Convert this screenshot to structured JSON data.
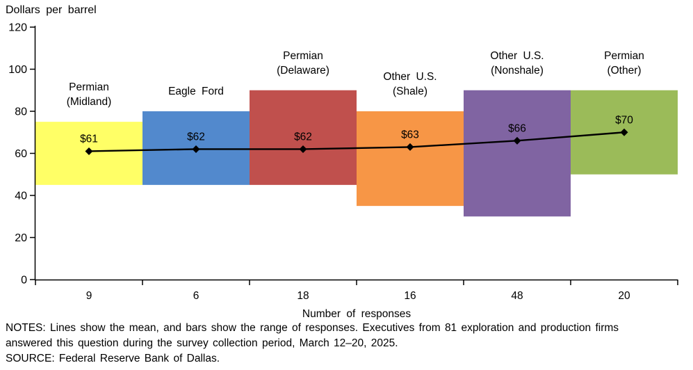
{
  "chart_data": {
    "type": "bar",
    "title": "Dollars per barrel",
    "xlabel": "Number of responses",
    "ylabel": "Dollars per barrel",
    "ylim": [
      0,
      120
    ],
    "yticks": [
      0,
      20,
      40,
      60,
      80,
      100,
      120
    ],
    "grid": false,
    "legend": "none",
    "line_color": "#000000",
    "categories": [
      {
        "label_lines": [
          "Permian",
          "(Midland)"
        ],
        "responses": "9",
        "range_low": 45,
        "range_high": 75,
        "mean": 61,
        "mean_label": "$61",
        "color": "#FFFF66"
      },
      {
        "label_lines": [
          "Eagle Ford"
        ],
        "responses": "6",
        "range_low": 45,
        "range_high": 80,
        "mean": 62,
        "mean_label": "$62",
        "color": "#5289CD"
      },
      {
        "label_lines": [
          "Permian",
          "(Delaware)"
        ],
        "responses": "18",
        "range_low": 45,
        "range_high": 90,
        "mean": 62,
        "mean_label": "$62",
        "color": "#C0504D"
      },
      {
        "label_lines": [
          "Other U.S.",
          "(Shale)"
        ],
        "responses": "16",
        "range_low": 35,
        "range_high": 80,
        "mean": 63,
        "mean_label": "$63",
        "color": "#F79646"
      },
      {
        "label_lines": [
          "Other U.S.",
          "(Nonshale)"
        ],
        "responses": "48",
        "range_low": 30,
        "range_high": 90,
        "mean": 66,
        "mean_label": "$66",
        "color": "#8064A2"
      },
      {
        "label_lines": [
          "Permian",
          "(Other)"
        ],
        "responses": "20",
        "range_low": 50,
        "range_high": 90,
        "mean": 70,
        "mean_label": "$70",
        "color": "#9BBB59"
      }
    ],
    "notes": "NOTES: Lines show the mean, and bars show the range of responses. Executives from 81 exploration and production firms answered this question during the survey collection period, March 12–20, 2025.",
    "source": "SOURCE: Federal Reserve Bank of Dallas."
  }
}
